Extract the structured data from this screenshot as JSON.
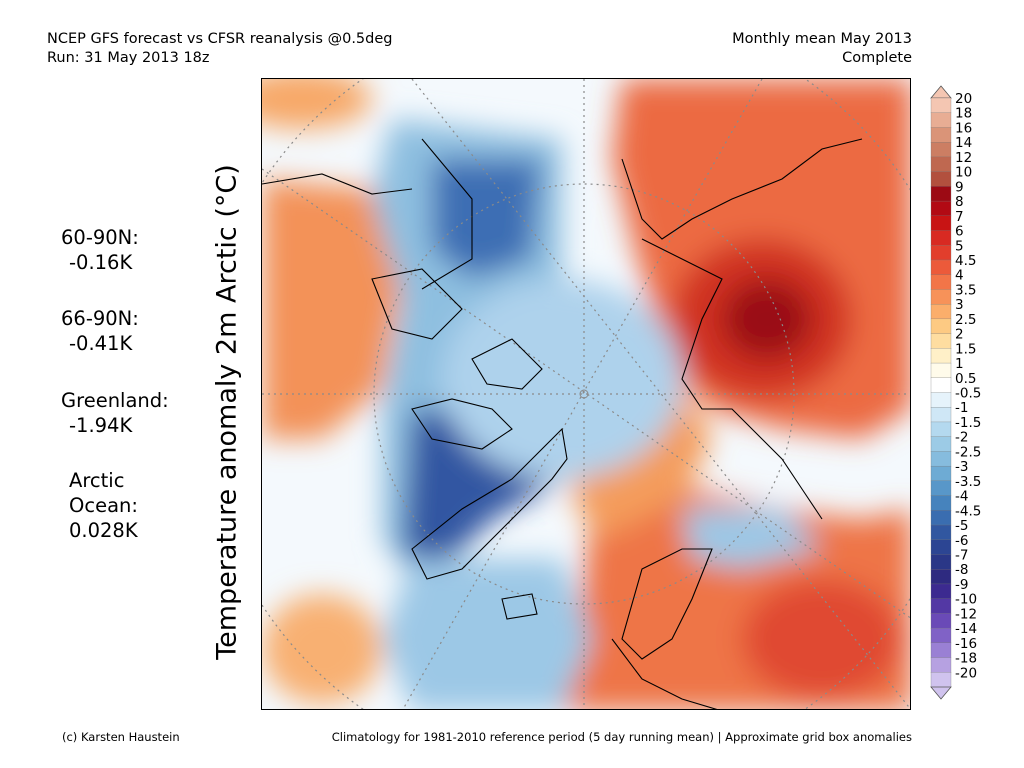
{
  "header": {
    "left_line1": "NCEP GFS forecast vs CFSR reanalysis @0.5deg",
    "left_line2": "Run: 31 May 2013 18z",
    "right_line1": "Monthly mean May 2013",
    "right_line2": "Complete"
  },
  "y_axis_label": "Temperature anomaly 2m Arctic (°C)",
  "stats": [
    {
      "label": "60-90N:",
      "value": "-0.16K"
    },
    {
      "label": "66-90N:",
      "value": "-0.41K"
    },
    {
      "label": "Greenland:",
      "value": "-1.94K"
    },
    {
      "label": "Arctic Ocean:",
      "value": "0.028K"
    }
  ],
  "footer": {
    "credit": "(c) Karsten Haustein",
    "note": "Climatology for 1981-2010 reference period (5 day running mean) | Approximate grid box anomalies"
  },
  "colorbar": {
    "labels": [
      "20",
      "18",
      "16",
      "14",
      "12",
      "10",
      "9",
      "8",
      "7",
      "6",
      "5",
      "4.5",
      "4",
      "3.5",
      "3",
      "2.5",
      "2",
      "1.5",
      "1",
      "0.5",
      "-0.5",
      "-1",
      "-1.5",
      "-2",
      "-2.5",
      "-3",
      "-3.5",
      "-4",
      "-4.5",
      "-5",
      "-6",
      "-7",
      "-8",
      "-9",
      "-10",
      "-12",
      "-14",
      "-16",
      "-18",
      "-20"
    ],
    "colors": [
      "#f4c6b2",
      "#e8ad94",
      "#da9478",
      "#cc7e63",
      "#bf6850",
      "#b2503e",
      "#9c0a14",
      "#b20a14",
      "#c81414",
      "#d82a22",
      "#e23e2c",
      "#ec5a3a",
      "#f27548",
      "#f79259",
      "#fbae6b",
      "#fdca83",
      "#feddA0",
      "#fff0c8",
      "#fffbea",
      "#ffffff",
      "#e6f3fb",
      "#cfe7f6",
      "#b4d9ef",
      "#9ccbe6",
      "#86bcde",
      "#6eabd4",
      "#5897c9",
      "#4683bd",
      "#3a6db0",
      "#3157a0",
      "#2c4593",
      "#2a3787",
      "#2e2a80",
      "#3c2a90",
      "#5338a4",
      "#6a4ab7",
      "#8062c6",
      "#9a80d4",
      "#b6a1e1",
      "#d0c3ee"
    ]
  },
  "colors": {
    "land_warm": "#e9623e",
    "hot_core": "#9a1016",
    "ice_cold": "#2f5aa6",
    "ocean_neutral": "#f6fbfe"
  }
}
